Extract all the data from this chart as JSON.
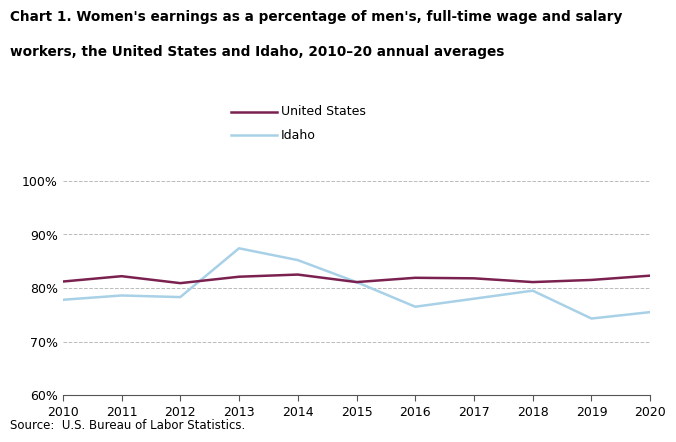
{
  "title_line1": "Chart 1. Women's earnings as a percentage of men's, full-time wage and salary",
  "title_line2": "workers, the United States and Idaho, 2010–20 annual averages",
  "years": [
    2010,
    2011,
    2012,
    2013,
    2014,
    2015,
    2016,
    2017,
    2018,
    2019,
    2020
  ],
  "us_values": [
    81.2,
    82.2,
    80.9,
    82.1,
    82.5,
    81.1,
    81.9,
    81.8,
    81.1,
    81.5,
    82.3
  ],
  "idaho_values": [
    77.8,
    78.6,
    78.3,
    87.4,
    85.2,
    81.1,
    76.5,
    78.0,
    79.5,
    74.3,
    75.5
  ],
  "us_color": "#7b2150",
  "idaho_color": "#a8d1e7",
  "us_label": "United States",
  "idaho_label": "Idaho",
  "ylim": [
    60,
    102
  ],
  "yticks": [
    60,
    70,
    80,
    90,
    100
  ],
  "ytick_labels": [
    "60%",
    "70%",
    "80%",
    "90%",
    "100%"
  ],
  "source": "Source:  U.S. Bureau of Labor Statistics.",
  "line_width": 1.8,
  "bg_color": "#ffffff",
  "grid_color": "#bbbbbb"
}
